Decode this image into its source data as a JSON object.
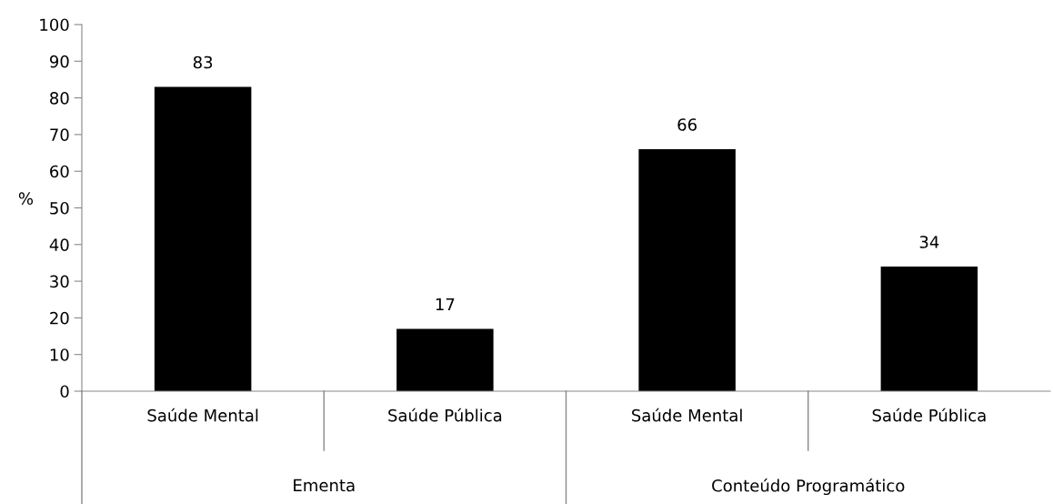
{
  "chart_data": {
    "type": "bar",
    "ylabel": "%",
    "categories": [
      "Saúde Mental",
      "Saúde Pública",
      "Saúde Mental",
      "Saúde Pública"
    ],
    "values": [
      83,
      17,
      66,
      34
    ],
    "color": "#000000",
    "ylim": [
      0,
      100
    ],
    "yticks": [
      0,
      10,
      20,
      30,
      40,
      50,
      60,
      70,
      80,
      90,
      100
    ],
    "data_labels": true,
    "grid": false,
    "annotations": [
      "Ementa",
      "Conteúdo Programático"
    ]
  }
}
